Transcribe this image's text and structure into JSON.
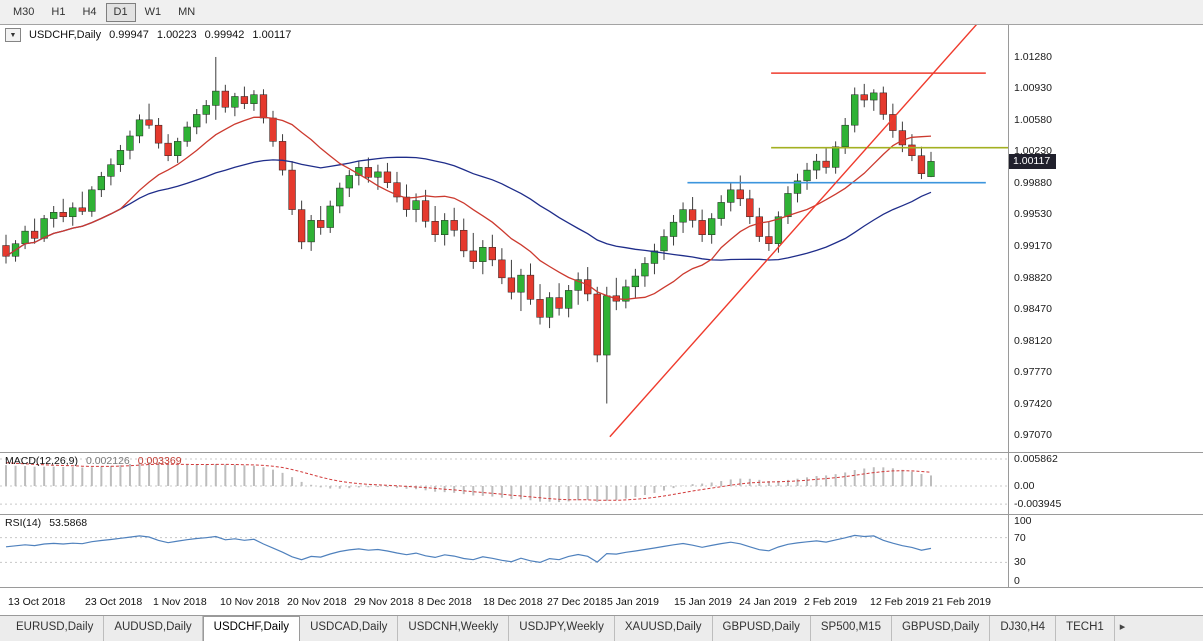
{
  "toolbar": {
    "timeframes": [
      "M30",
      "H1",
      "H4",
      "D1",
      "W1",
      "MN"
    ],
    "active": "D1"
  },
  "chart_header": {
    "dropdown_icon": "▼",
    "symbol": "USDCHF,Daily",
    "open": "0.99947",
    "high": "1.00223",
    "low": "0.99942",
    "close": "1.00117"
  },
  "tabs": {
    "items": [
      "EURUSD,Daily",
      "AUDUSD,Daily",
      "USDCHF,Daily",
      "USDCAD,Daily",
      "USDCNH,Weekly",
      "USDJPY,Weekly",
      "XAUUSD,Daily",
      "GBPUSD,Daily",
      "SP500,M15",
      "GBPUSD,Daily",
      "DJ30,H4",
      "TECH1"
    ],
    "active_index": 2,
    "scroll_right_icon": "▸"
  },
  "chart_data": {
    "type": "candlestick",
    "main": {
      "title": "USDCHF,Daily",
      "price_max": 1.01636,
      "price_min": 0.9688,
      "axis_ticks": [
        "1.01280",
        "1.00930",
        "1.00580",
        "1.00230",
        "0.99880",
        "0.99530",
        "0.99170",
        "0.98820",
        "0.98470",
        "0.98120",
        "0.97770",
        "0.97420",
        "0.97070"
      ],
      "last_price_label": "1.00117",
      "ma_fast_period": 13,
      "ma_slow_period": 34,
      "candles": [
        [
          0.9918,
          0.993,
          0.9898,
          0.9906
        ],
        [
          0.9906,
          0.9924,
          0.99,
          0.992
        ],
        [
          0.992,
          0.994,
          0.9914,
          0.9934
        ],
        [
          0.9934,
          0.9948,
          0.992,
          0.9926
        ],
        [
          0.9926,
          0.9952,
          0.9922,
          0.9948
        ],
        [
          0.9948,
          0.9962,
          0.9938,
          0.9955
        ],
        [
          0.9955,
          0.997,
          0.9944,
          0.995
        ],
        [
          0.995,
          0.9966,
          0.994,
          0.996
        ],
        [
          0.996,
          0.9978,
          0.9952,
          0.9956
        ],
        [
          0.9956,
          0.9984,
          0.995,
          0.998
        ],
        [
          0.998,
          1.0,
          0.9972,
          0.9995
        ],
        [
          0.9995,
          1.0015,
          0.9985,
          1.0008
        ],
        [
          1.0008,
          1.003,
          1.0,
          1.0024
        ],
        [
          1.0024,
          1.0046,
          1.0014,
          1.004
        ],
        [
          1.004,
          1.0064,
          1.0032,
          1.0058
        ],
        [
          1.0058,
          1.0076,
          1.0048,
          1.0052
        ],
        [
          1.0052,
          1.006,
          1.0026,
          1.0032
        ],
        [
          1.0032,
          1.0042,
          1.0012,
          1.0018
        ],
        [
          1.0018,
          1.0038,
          1.001,
          1.0034
        ],
        [
          1.0034,
          1.0056,
          1.0028,
          1.005
        ],
        [
          1.005,
          1.007,
          1.0042,
          1.0064
        ],
        [
          1.0064,
          1.008,
          1.0054,
          1.0074
        ],
        [
          1.0074,
          1.0128,
          1.0058,
          1.009
        ],
        [
          1.009,
          1.0097,
          1.0066,
          1.0072
        ],
        [
          1.0072,
          1.0088,
          1.0062,
          1.0084
        ],
        [
          1.0084,
          1.0095,
          1.007,
          1.0076
        ],
        [
          1.0076,
          1.0091,
          1.0068,
          1.0086
        ],
        [
          1.0086,
          1.0092,
          1.0054,
          1.006
        ],
        [
          1.006,
          1.0068,
          1.0028,
          1.0034
        ],
        [
          1.0034,
          1.0042,
          0.9996,
          1.0002
        ],
        [
          1.0002,
          1.0012,
          0.9952,
          0.9958
        ],
        [
          0.9958,
          0.9968,
          0.9914,
          0.9922
        ],
        [
          0.9922,
          0.9952,
          0.9912,
          0.9946
        ],
        [
          0.9946,
          0.9962,
          0.993,
          0.9938
        ],
        [
          0.9938,
          0.9968,
          0.9932,
          0.9962
        ],
        [
          0.9962,
          0.9988,
          0.9954,
          0.9982
        ],
        [
          0.9982,
          1.0002,
          0.9972,
          0.9996
        ],
        [
          0.9996,
          1.0012,
          0.9985,
          1.0005
        ],
        [
          1.0005,
          1.0016,
          0.9988,
          0.9994
        ],
        [
          0.9994,
          1.0008,
          0.998,
          1.0
        ],
        [
          1.0,
          1.001,
          0.9982,
          0.9988
        ],
        [
          0.9988,
          1.0,
          0.9966,
          0.9972
        ],
        [
          0.9972,
          0.9986,
          0.995,
          0.9958
        ],
        [
          0.9958,
          0.9976,
          0.9944,
          0.9968
        ],
        [
          0.9968,
          0.998,
          0.9938,
          0.9945
        ],
        [
          0.9945,
          0.9962,
          0.9922,
          0.993
        ],
        [
          0.993,
          0.9954,
          0.9918,
          0.9946
        ],
        [
          0.9946,
          0.996,
          0.9928,
          0.9935
        ],
        [
          0.9935,
          0.9948,
          0.9905,
          0.9912
        ],
        [
          0.9912,
          0.9932,
          0.9892,
          0.99
        ],
        [
          0.99,
          0.9924,
          0.9886,
          0.9916
        ],
        [
          0.9916,
          0.993,
          0.9895,
          0.9902
        ],
        [
          0.9902,
          0.9915,
          0.9875,
          0.9882
        ],
        [
          0.9882,
          0.9902,
          0.9858,
          0.9866
        ],
        [
          0.9866,
          0.9892,
          0.9845,
          0.9885
        ],
        [
          0.9885,
          0.9898,
          0.9852,
          0.9858
        ],
        [
          0.9858,
          0.9875,
          0.983,
          0.9838
        ],
        [
          0.9838,
          0.9866,
          0.9826,
          0.986
        ],
        [
          0.986,
          0.9876,
          0.984,
          0.9848
        ],
        [
          0.9848,
          0.9874,
          0.9838,
          0.9868
        ],
        [
          0.9868,
          0.9888,
          0.9852,
          0.988
        ],
        [
          0.988,
          0.9894,
          0.9856,
          0.9864
        ],
        [
          0.9864,
          0.9872,
          0.9788,
          0.9796
        ],
        [
          0.9796,
          0.9872,
          0.9742,
          0.9862
        ],
        [
          0.9862,
          0.9882,
          0.9846,
          0.9856
        ],
        [
          0.9856,
          0.988,
          0.9848,
          0.9872
        ],
        [
          0.9872,
          0.9892,
          0.986,
          0.9884
        ],
        [
          0.9884,
          0.9905,
          0.9872,
          0.9898
        ],
        [
          0.9898,
          0.992,
          0.9886,
          0.9912
        ],
        [
          0.9912,
          0.9936,
          0.9902,
          0.9928
        ],
        [
          0.9928,
          0.9952,
          0.9918,
          0.9944
        ],
        [
          0.9944,
          0.9966,
          0.9932,
          0.9958
        ],
        [
          0.9958,
          0.9972,
          0.9938,
          0.9946
        ],
        [
          0.9946,
          0.9958,
          0.9922,
          0.993
        ],
        [
          0.993,
          0.9954,
          0.992,
          0.9948
        ],
        [
          0.9948,
          0.9974,
          0.994,
          0.9966
        ],
        [
          0.9966,
          0.9988,
          0.9956,
          0.998
        ],
        [
          0.998,
          0.9996,
          0.9962,
          0.997
        ],
        [
          0.997,
          0.998,
          0.9942,
          0.995
        ],
        [
          0.995,
          0.996,
          0.9922,
          0.9928
        ],
        [
          0.9928,
          0.9945,
          0.9912,
          0.992
        ],
        [
          0.992,
          0.9956,
          0.991,
          0.995
        ],
        [
          0.995,
          0.9984,
          0.9942,
          0.9976
        ],
        [
          0.9976,
          0.9998,
          0.9966,
          0.999
        ],
        [
          0.999,
          1.001,
          0.998,
          1.0002
        ],
        [
          1.0002,
          1.002,
          0.9992,
          1.0012
        ],
        [
          1.0012,
          1.0026,
          0.9998,
          1.0005
        ],
        [
          1.0005,
          1.0034,
          0.9998,
          1.0028
        ],
        [
          1.0028,
          1.006,
          1.002,
          1.0052
        ],
        [
          1.0052,
          1.0094,
          1.0044,
          1.0086
        ],
        [
          1.0086,
          1.0098,
          1.0072,
          1.008
        ],
        [
          1.008,
          1.0092,
          1.0068,
          1.0088
        ],
        [
          1.0088,
          1.0095,
          1.0058,
          1.0064
        ],
        [
          1.0064,
          1.0076,
          1.0038,
          1.0046
        ],
        [
          1.0046,
          1.0056,
          1.0022,
          1.003
        ],
        [
          1.003,
          1.0042,
          1.0012,
          1.0018
        ],
        [
          1.0018,
          1.0028,
          0.9992,
          0.9998
        ],
        [
          0.99947,
          1.00223,
          0.99942,
          1.00117
        ]
      ],
      "objects": {
        "red_resistance": {
          "price": 1.011,
          "x1": 0.765,
          "x2": 0.978
        },
        "olive_level": {
          "price": 1.0027,
          "x1": 0.765,
          "x2": 1.0
        },
        "blue_support": {
          "price": 0.9988,
          "x1": 0.682,
          "x2": 0.978
        },
        "trendline": {
          "x1": 0.605,
          "p1": 0.9705,
          "x2": 0.975,
          "p2": 1.0172
        }
      }
    },
    "macd": {
      "label": "MACD(12,26,9)",
      "value_main": "0.002126",
      "value_signal": "0.003369",
      "params": [
        12,
        26,
        9
      ],
      "axis_max": 0.005862,
      "axis_min": -0.003945,
      "axis_max_label": "0.005862",
      "axis_zero_label": "0.00",
      "axis_min_label": "-0.003945"
    },
    "rsi": {
      "label": "RSI(14)",
      "value": "53.5868",
      "period": 14,
      "levels": [
        70,
        30
      ],
      "axis_labels": [
        {
          "v": 100,
          "t": "100"
        },
        {
          "v": 70,
          "t": "70"
        },
        {
          "v": 30,
          "t": "30"
        },
        {
          "v": 0,
          "t": "0"
        }
      ]
    },
    "date_axis": [
      {
        "label": "13 Oct 2018",
        "x": 0.008
      },
      {
        "label": "23 Oct 2018",
        "x": 0.084
      },
      {
        "label": "1 Nov 2018",
        "x": 0.152
      },
      {
        "label": "10 Nov 2018",
        "x": 0.218
      },
      {
        "label": "20 Nov 2018",
        "x": 0.285
      },
      {
        "label": "29 Nov 2018",
        "x": 0.351
      },
      {
        "label": "8 Dec 2018",
        "x": 0.415
      },
      {
        "label": "18 Dec 2018",
        "x": 0.479
      },
      {
        "label": "27 Dec 2018",
        "x": 0.543
      },
      {
        "label": "5 Jan 2019",
        "x": 0.602
      },
      {
        "label": "15 Jan 2019",
        "x": 0.669
      },
      {
        "label": "24 Jan 2019",
        "x": 0.733
      },
      {
        "label": "2 Feb 2019",
        "x": 0.798
      },
      {
        "label": "12 Feb 2019",
        "x": 0.863
      },
      {
        "label": "21 Feb 2019",
        "x": 0.925
      }
    ],
    "colors": {
      "candle_up": "#2fb235",
      "candle_down": "#e5392d",
      "wick": "#3c3c3c",
      "ma_fast": "#cc3a2f",
      "ma_slow": "#1f2d8a",
      "macd_hist": "#bdbdbd",
      "macd_signal": "#d23a3a",
      "grid_dash": "#c8c8c8",
      "rsi_line": "#4f81bd",
      "level_red": "#ef3b2d",
      "level_olive": "#a3b021",
      "level_blue": "#3c95dd",
      "price_tag_bg": "#20202c"
    }
  }
}
